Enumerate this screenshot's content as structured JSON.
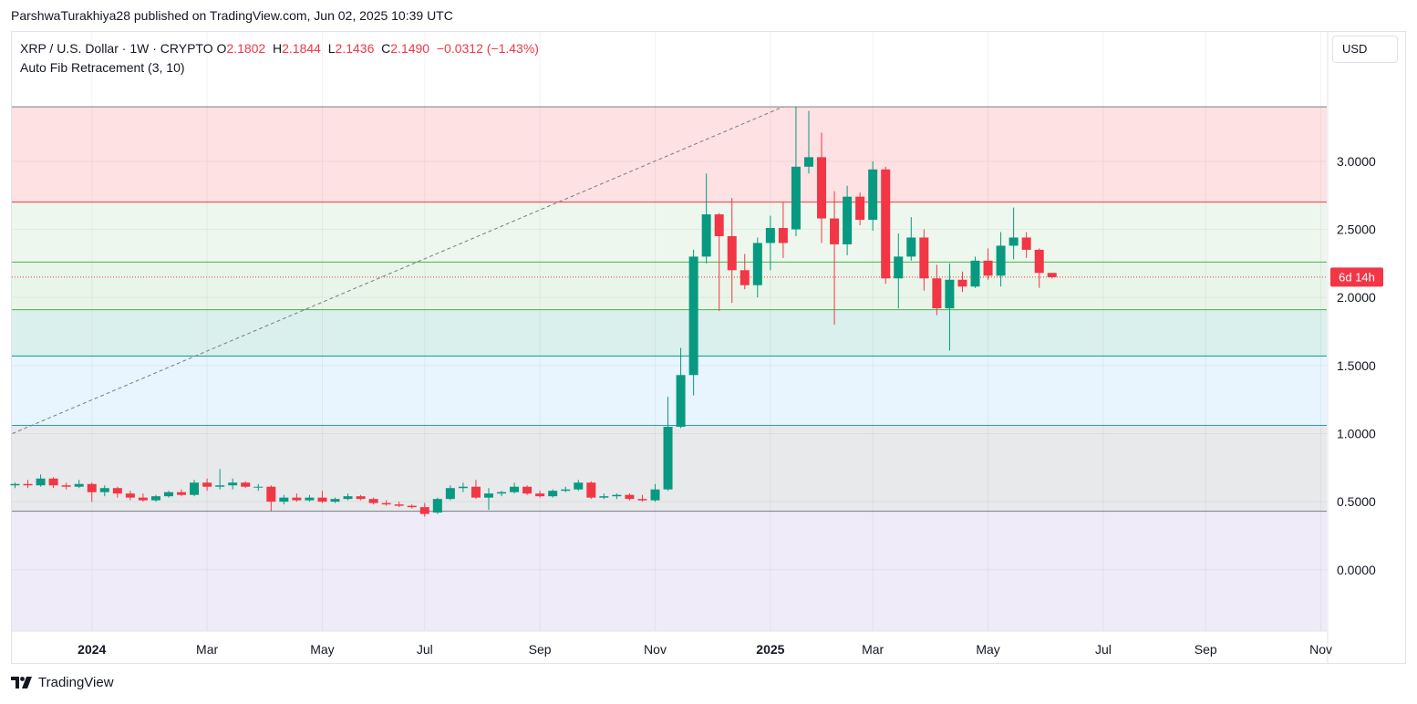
{
  "header": {
    "published": "ParshwaTurakhiya28 published on TradingView.com, Jun 02, 2025 10:39 UTC"
  },
  "legend": {
    "symbol": "XRP / U.S. Dollar · 1W · CRYPTO",
    "o_label": "O",
    "o_value": "2.1802",
    "h_label": "H",
    "h_value": "2.1844",
    "l_label": "L",
    "l_value": "2.1436",
    "c_label": "C",
    "c_value": "2.1490",
    "change": "−0.0312 (−1.43%)",
    "indicator": "Auto Fib Retracement (3, 10)"
  },
  "currency_button": "USD",
  "countdown": "6d 14h",
  "footer": {
    "brand": "TradingView"
  },
  "colors": {
    "up": "#089981",
    "down": "#f23645",
    "grid": "#f0f3fa"
  },
  "chart_data": {
    "type": "candlestick",
    "symbol": "XRPUSD",
    "timeframe": "1W",
    "ylim": [
      -0.45,
      3.95
    ],
    "y_ticks": [
      0.0,
      0.5,
      1.0,
      1.5,
      2.0,
      2.5,
      3.0
    ],
    "y_tick_labels": [
      "0.0000",
      "0.5000",
      "1.0000",
      "1.5000",
      "2.0000",
      "2.5000",
      "3.0000"
    ],
    "x_ticks": [
      {
        "label": "2024",
        "week": 6,
        "bold": true
      },
      {
        "label": "Mar",
        "week": 15,
        "bold": false
      },
      {
        "label": "May",
        "week": 24,
        "bold": false
      },
      {
        "label": "Jul",
        "week": 32,
        "bold": false
      },
      {
        "label": "Sep",
        "week": 41,
        "bold": false
      },
      {
        "label": "Nov",
        "week": 50,
        "bold": false
      },
      {
        "label": "2025",
        "week": 59,
        "bold": true
      },
      {
        "label": "Mar",
        "week": 67,
        "bold": false
      },
      {
        "label": "May",
        "week": 76,
        "bold": false
      },
      {
        "label": "Jul",
        "week": 85,
        "bold": false
      },
      {
        "label": "Sep",
        "week": 93,
        "bold": false
      },
      {
        "label": "Nov",
        "week": 102,
        "bold": false
      }
    ],
    "fib_levels": [
      {
        "value": 3.4,
        "color": "#787b86",
        "zone_to": 2.7,
        "zone": "rgba(242,54,69,0.15)"
      },
      {
        "value": 2.7,
        "color": "#f23645",
        "zone_to": 2.26,
        "zone": "rgba(76,175,80,0.10)"
      },
      {
        "value": 2.26,
        "color": "#4caf50",
        "zone_to": 1.91,
        "zone": "rgba(76,175,80,0.13)"
      },
      {
        "value": 1.91,
        "color": "#4caf50",
        "zone_to": 1.57,
        "zone": "rgba(8,153,129,0.15)"
      },
      {
        "value": 1.57,
        "color": "#089981",
        "zone_to": 1.06,
        "zone": "rgba(33,150,243,0.10)"
      },
      {
        "value": 1.06,
        "color": "#2196f3",
        "zone_to": 0.43,
        "zone": "rgba(120,123,134,0.17)"
      },
      {
        "value": 0.43,
        "color": "#787b86",
        "zone_to": -0.45,
        "zone": "rgba(103,58,183,0.10)"
      }
    ],
    "trend_line": [
      [
        0,
        1.0
      ],
      [
        60,
        3.4
      ]
    ],
    "current_price": 2.149,
    "candles": [
      [
        0.62,
        0.64,
        0.6,
        0.63
      ],
      [
        0.63,
        0.66,
        0.6,
        0.62
      ],
      [
        0.62,
        0.7,
        0.61,
        0.67
      ],
      [
        0.67,
        0.68,
        0.6,
        0.62
      ],
      [
        0.62,
        0.64,
        0.59,
        0.61
      ],
      [
        0.61,
        0.66,
        0.6,
        0.63
      ],
      [
        0.63,
        0.64,
        0.5,
        0.57
      ],
      [
        0.57,
        0.62,
        0.54,
        0.6
      ],
      [
        0.6,
        0.61,
        0.53,
        0.56
      ],
      [
        0.56,
        0.58,
        0.51,
        0.53
      ],
      [
        0.53,
        0.56,
        0.5,
        0.51
      ],
      [
        0.51,
        0.55,
        0.5,
        0.54
      ],
      [
        0.54,
        0.58,
        0.53,
        0.57
      ],
      [
        0.57,
        0.59,
        0.54,
        0.55
      ],
      [
        0.55,
        0.66,
        0.54,
        0.64
      ],
      [
        0.64,
        0.67,
        0.58,
        0.61
      ],
      [
        0.61,
        0.74,
        0.59,
        0.62
      ],
      [
        0.62,
        0.67,
        0.59,
        0.64
      ],
      [
        0.64,
        0.65,
        0.6,
        0.61
      ],
      [
        0.61,
        0.63,
        0.58,
        0.61
      ],
      [
        0.61,
        0.62,
        0.43,
        0.5
      ],
      [
        0.5,
        0.55,
        0.48,
        0.53
      ],
      [
        0.53,
        0.56,
        0.5,
        0.51
      ],
      [
        0.51,
        0.55,
        0.5,
        0.53
      ],
      [
        0.53,
        0.58,
        0.49,
        0.5
      ],
      [
        0.5,
        0.53,
        0.49,
        0.52
      ],
      [
        0.52,
        0.56,
        0.51,
        0.54
      ],
      [
        0.54,
        0.55,
        0.51,
        0.52
      ],
      [
        0.52,
        0.53,
        0.48,
        0.49
      ],
      [
        0.49,
        0.51,
        0.47,
        0.48
      ],
      [
        0.48,
        0.5,
        0.46,
        0.47
      ],
      [
        0.47,
        0.48,
        0.45,
        0.46
      ],
      [
        0.46,
        0.49,
        0.39,
        0.41
      ],
      [
        0.42,
        0.53,
        0.41,
        0.52
      ],
      [
        0.52,
        0.62,
        0.51,
        0.6
      ],
      [
        0.6,
        0.64,
        0.57,
        0.61
      ],
      [
        0.61,
        0.66,
        0.52,
        0.53
      ],
      [
        0.53,
        0.6,
        0.44,
        0.56
      ],
      [
        0.56,
        0.58,
        0.54,
        0.57
      ],
      [
        0.57,
        0.64,
        0.56,
        0.61
      ],
      [
        0.61,
        0.62,
        0.55,
        0.56
      ],
      [
        0.56,
        0.58,
        0.53,
        0.54
      ],
      [
        0.54,
        0.59,
        0.53,
        0.58
      ],
      [
        0.58,
        0.61,
        0.57,
        0.59
      ],
      [
        0.59,
        0.66,
        0.58,
        0.64
      ],
      [
        0.64,
        0.65,
        0.52,
        0.53
      ],
      [
        0.53,
        0.56,
        0.52,
        0.54
      ],
      [
        0.54,
        0.56,
        0.52,
        0.55
      ],
      [
        0.55,
        0.56,
        0.51,
        0.52
      ],
      [
        0.52,
        0.55,
        0.5,
        0.51
      ],
      [
        0.51,
        0.63,
        0.5,
        0.59
      ],
      [
        0.59,
        1.27,
        0.58,
        1.05
      ],
      [
        1.05,
        1.63,
        1.04,
        1.43
      ],
      [
        1.43,
        2.35,
        1.28,
        2.3
      ],
      [
        2.3,
        2.91,
        2.25,
        2.61
      ],
      [
        2.61,
        2.62,
        1.9,
        2.45
      ],
      [
        2.45,
        2.73,
        1.96,
        2.2
      ],
      [
        2.2,
        2.32,
        2.06,
        2.09
      ],
      [
        2.09,
        2.44,
        2.0,
        2.4
      ],
      [
        2.4,
        2.6,
        2.2,
        2.51
      ],
      [
        2.51,
        2.7,
        2.29,
        2.4
      ],
      [
        2.5,
        3.4,
        2.45,
        2.96
      ],
      [
        2.96,
        3.37,
        2.91,
        3.03
      ],
      [
        3.03,
        3.21,
        2.4,
        2.58
      ],
      [
        2.58,
        2.78,
        1.8,
        2.39
      ],
      [
        2.39,
        2.82,
        2.31,
        2.74
      ],
      [
        2.74,
        2.77,
        2.53,
        2.57
      ],
      [
        2.57,
        3.0,
        2.49,
        2.94
      ],
      [
        2.94,
        2.96,
        2.1,
        2.14
      ],
      [
        2.14,
        2.47,
        1.92,
        2.3
      ],
      [
        2.3,
        2.59,
        2.27,
        2.44
      ],
      [
        2.44,
        2.5,
        2.05,
        2.14
      ],
      [
        2.14,
        2.24,
        1.87,
        1.92
      ],
      [
        1.92,
        2.25,
        1.61,
        2.13
      ],
      [
        2.13,
        2.19,
        2.04,
        2.08
      ],
      [
        2.08,
        2.3,
        2.07,
        2.27
      ],
      [
        2.27,
        2.36,
        2.13,
        2.16
      ],
      [
        2.16,
        2.48,
        2.08,
        2.38
      ],
      [
        2.38,
        2.66,
        2.28,
        2.44
      ],
      [
        2.44,
        2.48,
        2.29,
        2.35
      ],
      [
        2.35,
        2.36,
        2.07,
        2.18
      ],
      [
        2.18,
        2.18,
        2.14,
        2.149
      ]
    ]
  }
}
